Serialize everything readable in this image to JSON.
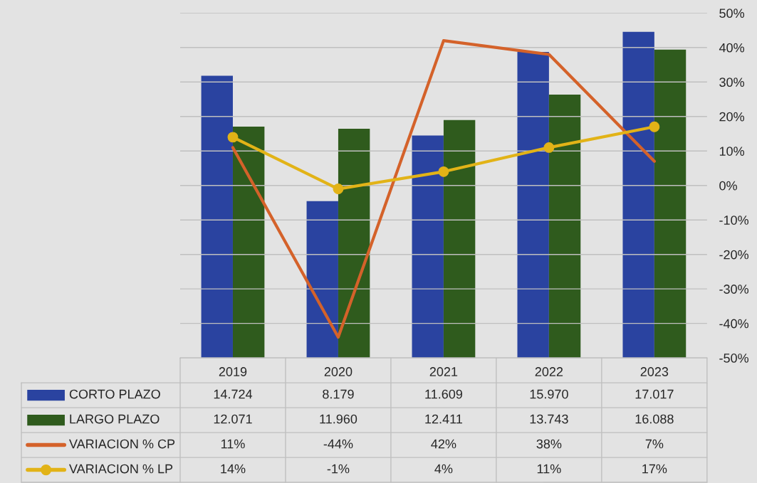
{
  "chart_data": {
    "type": "bar",
    "categories": [
      "2019",
      "2020",
      "2021",
      "2022",
      "2023"
    ],
    "series": [
      {
        "name": "CORTO PLAZO",
        "color": "#2a43a0",
        "values": [
          14724,
          8179,
          11609,
          15970,
          17017
        ],
        "value_labels": [
          "14.724",
          "8.179",
          "11.609",
          "15.970",
          "17.017"
        ]
      },
      {
        "name": "LARGO PLAZO",
        "color": "#2f5b1d",
        "values": [
          12071,
          11960,
          12411,
          13743,
          16088
        ],
        "value_labels": [
          "12.071",
          "11.960",
          "12.411",
          "13.743",
          "16.088"
        ]
      },
      {
        "name": "VARIACION % CP",
        "type": "line",
        "axis": "y2",
        "color": "#d4622a",
        "marker": "none",
        "values": [
          11,
          -44,
          42,
          38,
          7
        ],
        "value_labels": [
          "11%",
          "-44%",
          "42%",
          "38%",
          "7%"
        ]
      },
      {
        "name": "VARIACION % LP",
        "type": "line",
        "axis": "y2",
        "color": "#e2b317",
        "marker": "circle",
        "values": [
          14,
          -1,
          4,
          11,
          17
        ],
        "value_labels": [
          "14%",
          "-1%",
          "4%",
          "11%",
          "17%"
        ]
      }
    ],
    "ylim": [
      0,
      18000
    ],
    "y2lim": [
      -50,
      50
    ],
    "y2ticks": [
      {
        "value": -50,
        "label": "-50%"
      },
      {
        "value": -40,
        "label": "-40%"
      },
      {
        "value": -30,
        "label": "-30%"
      },
      {
        "value": -20,
        "label": "-20%"
      },
      {
        "value": -10,
        "label": "-10%"
      },
      {
        "value": 0,
        "label": "0%"
      },
      {
        "value": 10,
        "label": "10%"
      },
      {
        "value": 20,
        "label": "20%"
      },
      {
        "value": 30,
        "label": "30%"
      },
      {
        "value": 40,
        "label": "40%"
      },
      {
        "value": 50,
        "label": "50%"
      }
    ],
    "tick_labels": "x",
    "grid": "y",
    "legend": "bottom",
    "line_style": "solid"
  }
}
